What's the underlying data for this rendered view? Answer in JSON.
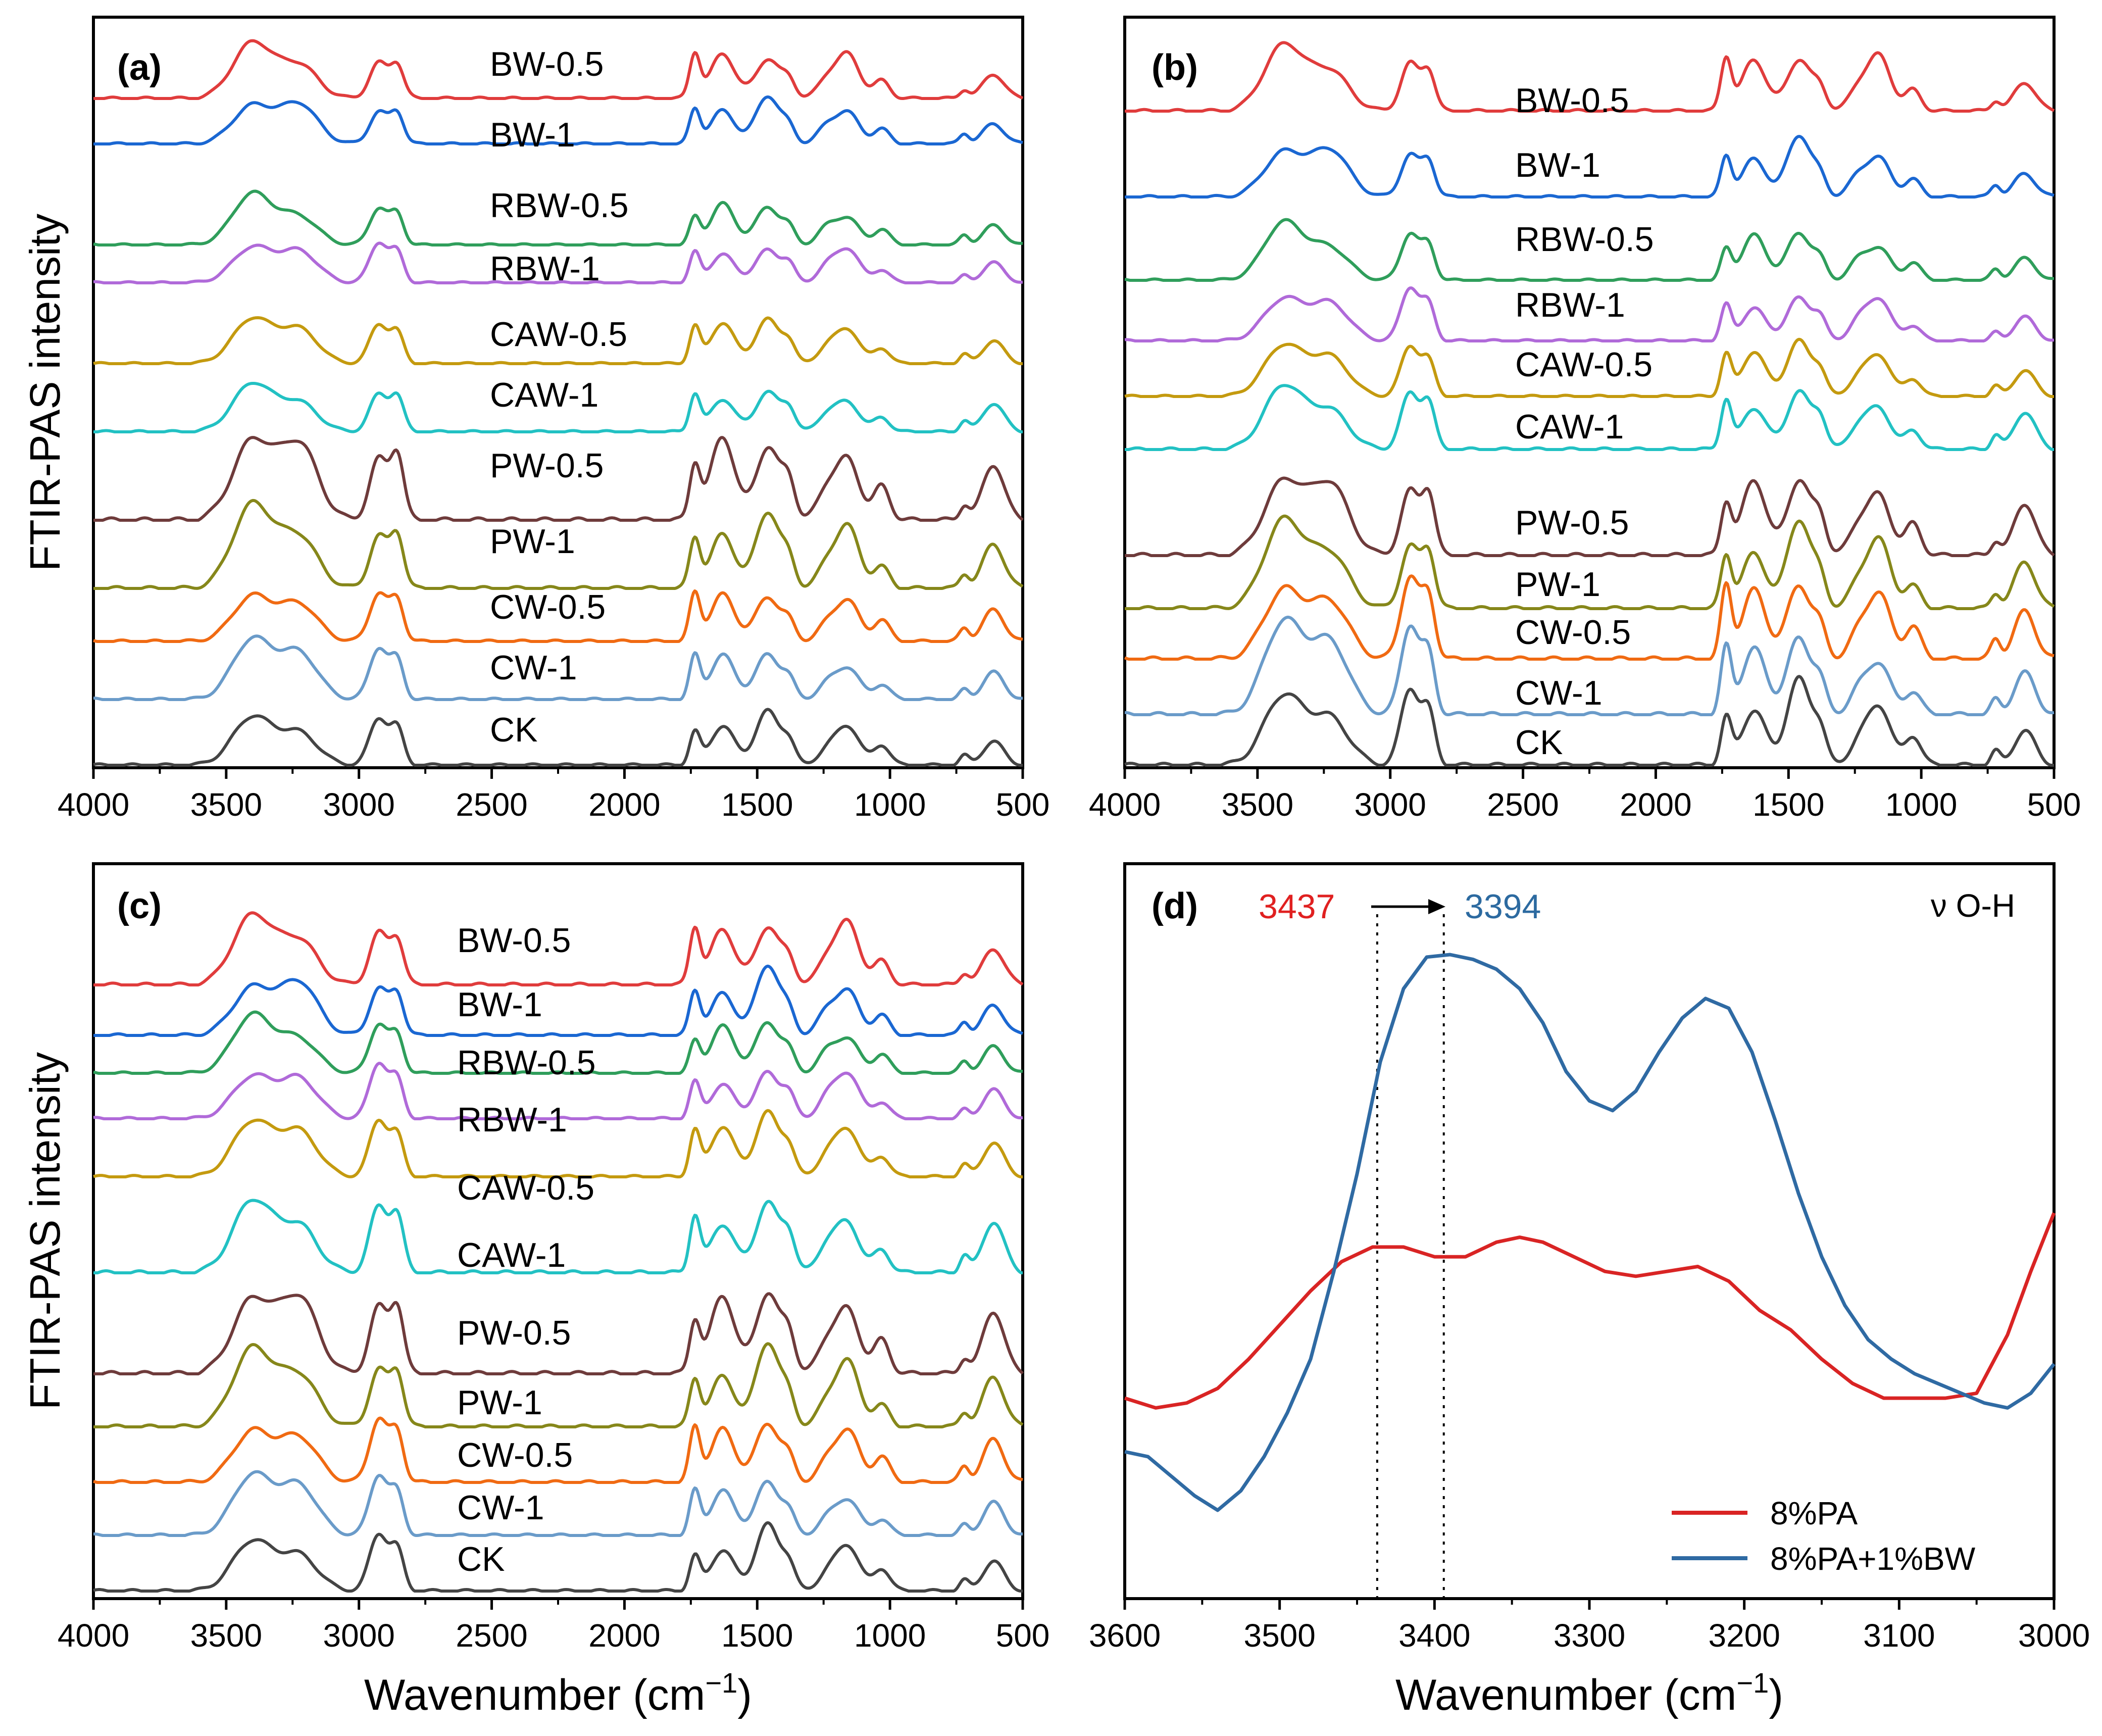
{
  "figure": {
    "ylabel_top": "FTIR-PAS intensity",
    "ylabel_bottom": "FTIR-PAS intensity",
    "xlabel_left_prefix": "Wavenumber (cm",
    "xlabel_left_sup": "−1",
    "xlabel_left_suffix": ")",
    "xlabel_right_prefix": "Wavenumber (cm",
    "xlabel_right_sup": "−1",
    "xlabel_right_suffix": ")"
  },
  "chart_data": [
    {
      "type": "line",
      "panel": "(a)",
      "xlim": [
        4000,
        500
      ],
      "xticks": [
        "4000",
        "3500",
        "3000",
        "2500",
        "2000",
        "1500",
        "1000",
        "500"
      ],
      "stacked_offset": true,
      "series": [
        {
          "name": "BW-0.5",
          "color": "#e03c3c"
        },
        {
          "name": "BW-1",
          "color": "#1a67d2"
        },
        {
          "name": "RBW-0.5",
          "color": "#2f9e5b"
        },
        {
          "name": "RBW-1",
          "color": "#b06ad9"
        },
        {
          "name": "CAW-0.5",
          "color": "#c49a0f"
        },
        {
          "name": "CAW-1",
          "color": "#22c1c3"
        },
        {
          "name": "PW-0.5",
          "color": "#6e3b3b"
        },
        {
          "name": "PW-1",
          "color": "#86871a"
        },
        {
          "name": "CW-0.5",
          "color": "#f06a12"
        },
        {
          "name": "CW-1",
          "color": "#6a9bc9"
        },
        {
          "name": "CK",
          "color": "#444444"
        }
      ]
    },
    {
      "type": "line",
      "panel": "(b)",
      "xlim": [
        4000,
        500
      ],
      "xticks": [
        "4000",
        "3500",
        "3000",
        "2500",
        "2000",
        "1500",
        "1000",
        "500"
      ],
      "stacked_offset": true,
      "series": [
        {
          "name": "BW-0.5",
          "color": "#e03c3c"
        },
        {
          "name": "BW-1",
          "color": "#1a67d2"
        },
        {
          "name": "RBW-0.5",
          "color": "#2f9e5b"
        },
        {
          "name": "RBW-1",
          "color": "#b06ad9"
        },
        {
          "name": "CAW-0.5",
          "color": "#c49a0f"
        },
        {
          "name": "CAW-1",
          "color": "#22c1c3"
        },
        {
          "name": "PW-0.5",
          "color": "#6e3b3b"
        },
        {
          "name": "PW-1",
          "color": "#86871a"
        },
        {
          "name": "CW-0.5",
          "color": "#f06a12"
        },
        {
          "name": "CW-1",
          "color": "#6a9bc9"
        },
        {
          "name": "CK",
          "color": "#444444"
        }
      ]
    },
    {
      "type": "line",
      "panel": "(c)",
      "xlim": [
        4000,
        500
      ],
      "xticks": [
        "4000",
        "3500",
        "3000",
        "2500",
        "2000",
        "1500",
        "1000",
        "500"
      ],
      "stacked_offset": true,
      "series": [
        {
          "name": "BW-0.5",
          "color": "#e03c3c"
        },
        {
          "name": "BW-1",
          "color": "#1a67d2"
        },
        {
          "name": "RBW-0.5",
          "color": "#2f9e5b"
        },
        {
          "name": "RBW-1",
          "color": "#b06ad9"
        },
        {
          "name": "CAW-0.5",
          "color": "#c49a0f"
        },
        {
          "name": "CAW-1",
          "color": "#22c1c3"
        },
        {
          "name": "PW-0.5",
          "color": "#6e3b3b"
        },
        {
          "name": "PW-1",
          "color": "#86871a"
        },
        {
          "name": "CW-0.5",
          "color": "#f06a12"
        },
        {
          "name": "CW-1",
          "color": "#6a9bc9"
        },
        {
          "name": "CK",
          "color": "#444444"
        }
      ]
    },
    {
      "type": "line",
      "panel": "(d)",
      "xlim": [
        3600,
        3000
      ],
      "xticks": [
        "3600",
        "3500",
        "3400",
        "3300",
        "3200",
        "3100",
        "3000"
      ],
      "annotation_left": "3437",
      "annotation_left_color": "#e02020",
      "annotation_right": "3394",
      "annotation_right_color": "#2c6aa0",
      "annotation_label": "ν O-H",
      "vlines": [
        3437,
        3394
      ],
      "legend_position": "bottom-right",
      "series": [
        {
          "name": "8%PA",
          "color": "#d92424",
          "x": [
            3600,
            3580,
            3560,
            3540,
            3520,
            3500,
            3480,
            3460,
            3440,
            3420,
            3400,
            3380,
            3360,
            3345,
            3330,
            3310,
            3290,
            3270,
            3250,
            3230,
            3210,
            3190,
            3170,
            3150,
            3130,
            3110,
            3090,
            3070,
            3050,
            3030,
            3015,
            3000
          ],
          "y": [
            0.09,
            0.07,
            0.08,
            0.11,
            0.17,
            0.24,
            0.31,
            0.37,
            0.4,
            0.4,
            0.38,
            0.38,
            0.41,
            0.42,
            0.41,
            0.38,
            0.35,
            0.34,
            0.35,
            0.36,
            0.33,
            0.27,
            0.23,
            0.17,
            0.12,
            0.09,
            0.09,
            0.09,
            0.1,
            0.22,
            0.35,
            0.47
          ]
        },
        {
          "name": "8%PA+1%BW",
          "color": "#2f6aa3",
          "x": [
            3600,
            3585,
            3570,
            3555,
            3540,
            3525,
            3510,
            3495,
            3480,
            3465,
            3450,
            3435,
            3420,
            3405,
            3390,
            3375,
            3360,
            3345,
            3330,
            3315,
            3300,
            3285,
            3270,
            3255,
            3240,
            3225,
            3210,
            3195,
            3180,
            3165,
            3150,
            3135,
            3120,
            3105,
            3090,
            3075,
            3060,
            3045,
            3030,
            3015,
            3000
          ],
          "y": [
            -0.02,
            -0.03,
            -0.07,
            -0.11,
            -0.14,
            -0.1,
            -0.03,
            0.06,
            0.17,
            0.35,
            0.55,
            0.78,
            0.93,
            0.995,
            1.0,
            0.99,
            0.97,
            0.93,
            0.86,
            0.76,
            0.7,
            0.68,
            0.72,
            0.8,
            0.87,
            0.91,
            0.89,
            0.8,
            0.66,
            0.51,
            0.38,
            0.28,
            0.21,
            0.17,
            0.14,
            0.12,
            0.1,
            0.08,
            0.07,
            0.1,
            0.16
          ]
        }
      ]
    }
  ]
}
